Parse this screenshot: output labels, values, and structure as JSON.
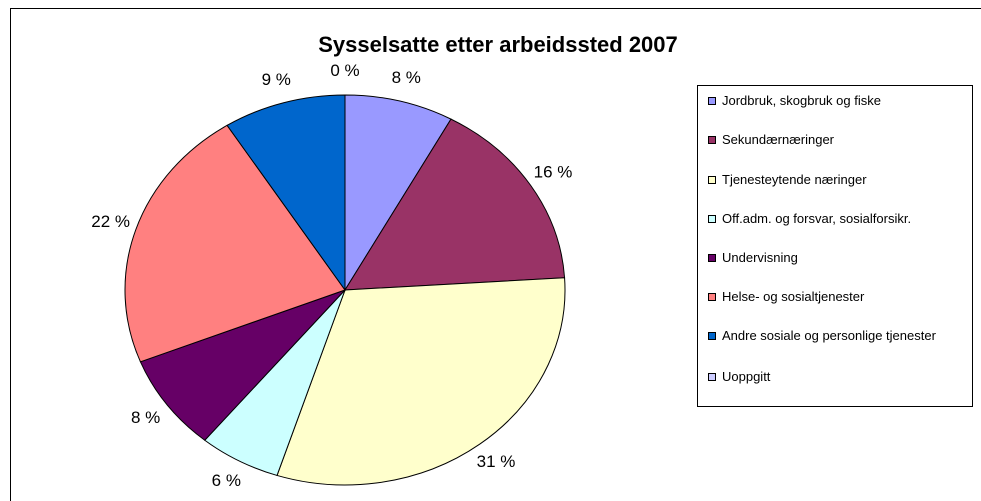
{
  "chart_data": {
    "type": "pie",
    "title": "Sysselsatte etter arbeidssted 2007",
    "categories": [
      "Jordbruk, skogbruk og fiske",
      "Sekundærnæringer",
      "Tjenesteytende næringer",
      "Off.adm. og forsvar, sosialforsikr.",
      "Undervisning",
      "Helse- og sosialtjenester",
      "Andre sosiale og  personlige tjenester",
      "Uoppgitt"
    ],
    "values": [
      8,
      16,
      31,
      6,
      8,
      22,
      9,
      0
    ],
    "value_labels": [
      "8 %",
      "16 %",
      "31 %",
      "6 %",
      "8 %",
      "22 %",
      "9 %",
      "0 %"
    ],
    "colors": [
      "#9999ff",
      "#993366",
      "#ffffcc",
      "#ccffff",
      "#660066",
      "#ff8080",
      "#0066cc",
      "#ccccff"
    ],
    "legend": "right"
  }
}
